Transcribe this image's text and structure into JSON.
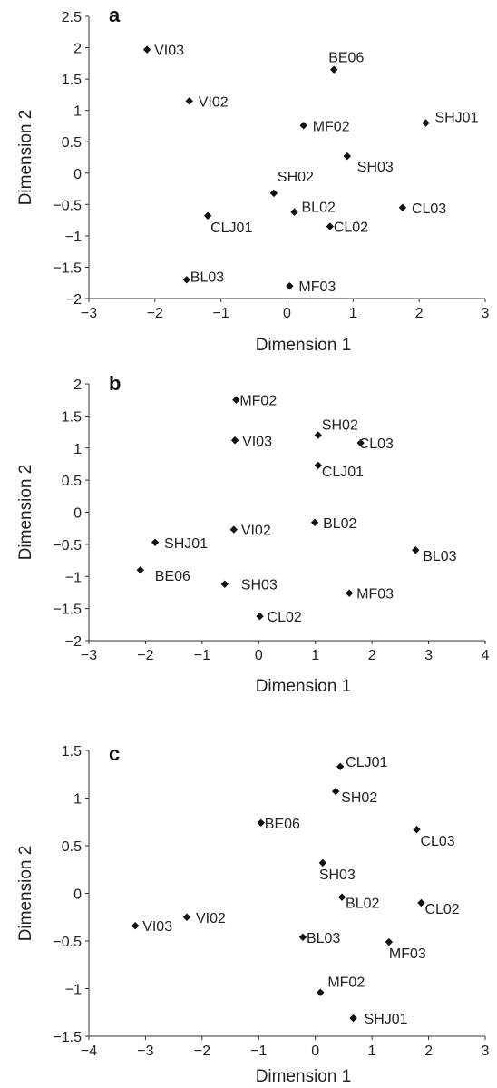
{
  "chart_data": [
    {
      "type": "scatter",
      "panel_label": "a",
      "xlabel": "Dimension 1",
      "ylabel": "Dimension 2",
      "xlim": [
        -3,
        3
      ],
      "ylim": [
        -2,
        2.5
      ],
      "xticks": [
        -3,
        -2,
        -1,
        0,
        1,
        2,
        3
      ],
      "yticks": [
        -2,
        -1.5,
        -1,
        -0.5,
        0,
        0.5,
        1,
        1.5,
        2,
        2.5
      ],
      "xtick_labels": [
        "−3",
        "−2",
        "−1",
        "0",
        "1",
        "2",
        "3"
      ],
      "ytick_labels": [
        "−2",
        "−1.5",
        "−1",
        "−0.5",
        "0",
        "0.5",
        "1",
        "1.5",
        "2",
        "2.5"
      ],
      "grid": false,
      "points": [
        {
          "label": "VI03",
          "x": -2.12,
          "y": 1.97
        },
        {
          "label": "BE06",
          "x": 0.71,
          "y": 1.65
        },
        {
          "label": "VI02",
          "x": -1.48,
          "y": 1.15
        },
        {
          "label": "SHJ01",
          "x": 2.1,
          "y": 0.8
        },
        {
          "label": "MF02",
          "x": 0.25,
          "y": 0.76
        },
        {
          "label": "SH03",
          "x": 0.91,
          "y": 0.27
        },
        {
          "label": "SH02",
          "x": -0.2,
          "y": -0.32
        },
        {
          "label": "BL02",
          "x": 0.11,
          "y": -0.62
        },
        {
          "label": "CL03",
          "x": 1.75,
          "y": -0.55
        },
        {
          "label": "CLJ01",
          "x": -1.2,
          "y": -0.68
        },
        {
          "label": "CL02",
          "x": 0.65,
          "y": -0.85
        },
        {
          "label": "BL03",
          "x": -1.52,
          "y": -1.7
        },
        {
          "label": "MF03",
          "x": 0.04,
          "y": -1.8
        }
      ]
    },
    {
      "type": "scatter",
      "panel_label": "b",
      "xlabel": "Dimension 1",
      "ylabel": "Dimension 2",
      "xlim": [
        -3,
        4
      ],
      "ylim": [
        -2,
        2
      ],
      "xticks": [
        -3,
        -2,
        -1,
        0,
        1,
        2,
        3,
        4
      ],
      "yticks": [
        -2,
        -1.5,
        -1,
        -0.5,
        0,
        0.5,
        1,
        1.5,
        2
      ],
      "xtick_labels": [
        "−3",
        "−2",
        "−1",
        "0",
        "1",
        "2",
        "3",
        "4"
      ],
      "ytick_labels": [
        "−2",
        "−1.5",
        "−1",
        "−0.5",
        "0",
        "0.5",
        "1",
        "1.5",
        "2"
      ],
      "grid": false,
      "points": [
        {
          "label": "MF02",
          "x": -0.4,
          "y": 1.75
        },
        {
          "label": "SH02",
          "x": 1.05,
          "y": 1.2
        },
        {
          "label": "VI03",
          "x": -0.42,
          "y": 1.12
        },
        {
          "label": "CL03",
          "x": 1.8,
          "y": 1.08
        },
        {
          "label": "CLJ01",
          "x": 1.05,
          "y": 0.73
        },
        {
          "label": "BL02",
          "x": 0.99,
          "y": -0.16
        },
        {
          "label": "VI02",
          "x": -0.44,
          "y": -0.27
        },
        {
          "label": "SHJ01",
          "x": -1.83,
          "y": -0.47
        },
        {
          "label": "BL03",
          "x": 2.77,
          "y": -0.59
        },
        {
          "label": "BE06",
          "x": -2.09,
          "y": -0.9
        },
        {
          "label": "SH03",
          "x": -0.6,
          "y": -1.12
        },
        {
          "label": "MF03",
          "x": 1.6,
          "y": -1.26
        },
        {
          "label": "CL02",
          "x": 0.02,
          "y": -1.62
        }
      ]
    },
    {
      "type": "scatter",
      "panel_label": "c",
      "xlabel": "Dimension 1",
      "ylabel": "Dimension 2",
      "xlim": [
        -4,
        3
      ],
      "ylim": [
        -1.5,
        1.5
      ],
      "xticks": [
        -4,
        -3,
        -2,
        -1,
        0,
        1,
        2,
        3
      ],
      "yticks": [
        -1.5,
        -1,
        -0.5,
        0,
        0.5,
        1,
        1.5
      ],
      "xtick_labels": [
        "−4",
        "−3",
        "−2",
        "−1",
        "0",
        "1",
        "2",
        "3"
      ],
      "ytick_labels": [
        "−1.5",
        "−1",
        "−0.5",
        "0",
        "0.5",
        "1",
        "1.5"
      ],
      "grid": false,
      "points": [
        {
          "label": "CLJ01",
          "x": 0.44,
          "y": 1.33
        },
        {
          "label": "SH02",
          "x": 0.36,
          "y": 1.07
        },
        {
          "label": "BE06",
          "x": -0.96,
          "y": 0.74
        },
        {
          "label": "CL03",
          "x": 1.79,
          "y": 0.67
        },
        {
          "label": "SH03",
          "x": 0.13,
          "y": 0.32
        },
        {
          "label": "BL02",
          "x": 0.47,
          "y": -0.04
        },
        {
          "label": "CL02",
          "x": 1.87,
          "y": -0.1
        },
        {
          "label": "VI02",
          "x": -2.27,
          "y": -0.25
        },
        {
          "label": "VI03",
          "x": -3.18,
          "y": -0.34
        },
        {
          "label": "BL03",
          "x": -0.22,
          "y": -0.46
        },
        {
          "label": "MF03",
          "x": 1.3,
          "y": -0.51
        },
        {
          "label": "MF02",
          "x": 0.09,
          "y": -1.04
        },
        {
          "label": "SHJ01",
          "x": 0.67,
          "y": -1.31
        }
      ]
    }
  ]
}
